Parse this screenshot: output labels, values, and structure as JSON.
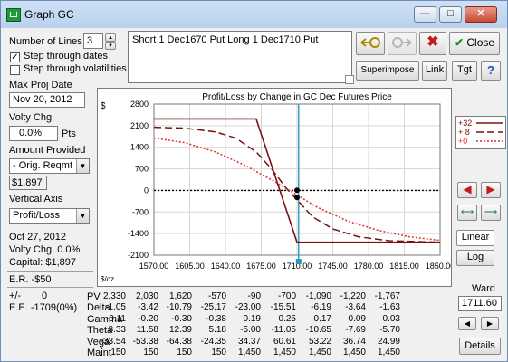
{
  "window": {
    "title": "Graph GC"
  },
  "left_panel": {
    "num_lines_label": "Number of Lines",
    "num_lines_value": "3",
    "step_dates_label": "Step through dates",
    "step_vol_label": "Step through volatilities",
    "max_proj_date_label": "Max Proj Date",
    "max_proj_date_value": "Nov 20, 2012",
    "volty_chg_label": "Volty Chg",
    "volty_chg_value": "0.0%",
    "volty_chg_unit": "Pts",
    "amount_provided_label": "Amount Provided",
    "amount_provided_value": "- Orig. Reqmt",
    "amount_value": "$1,897",
    "vertical_axis_label": "Vertical Axis",
    "vertical_axis_value": "Profit/Loss",
    "info_date": "Oct 27, 2012",
    "info_volty": "Volty Chg. 0.0%",
    "info_capital": "Capital: $1,897",
    "er_label": "E.R. -$50",
    "pm_label": "+/-",
    "pm_value": "0",
    "ee_label": "E.E. -1709(0%)"
  },
  "position_text": "Short 1 Dec1670 Put  Long 1 Dec1710 Put",
  "toolbar": {
    "close_label": "Close",
    "superimpose_label": "Superimpose",
    "link_label": "Link",
    "tgt_label": "Tgt",
    "help_label": "?"
  },
  "right_panel": {
    "linear_label": "Linear",
    "log_label": "Log",
    "ward_label": "Ward",
    "ward_value": "1711.60",
    "details_label": "Details"
  },
  "legend": [
    {
      "label": "+32",
      "color": "#7a1010",
      "style": "solid"
    },
    {
      "label": "+ 8",
      "color": "#7a1010",
      "style": "dash"
    },
    {
      "label": "+0",
      "color": "#e03030",
      "style": "dot"
    }
  ],
  "chart_data": {
    "type": "line",
    "title": "Profit/Loss by Change in GC Dec Futures Price",
    "ylabel_unit": "$",
    "xlabel_unit": "$/oz",
    "x_ticks": [
      "1570.00",
      "1605.00",
      "1640.00",
      "1675.00",
      "1710.00",
      "1745.00",
      "1780.00",
      "1815.00",
      "1850.00"
    ],
    "y_ticks": [
      "2800",
      "2100",
      "1400",
      "700",
      "0",
      "-700",
      "-1400",
      "-2100"
    ],
    "xlim": [
      1570,
      1850
    ],
    "ylim": [
      -2100,
      2800
    ],
    "current_price": 1711.6,
    "zero_line_style": "dotted",
    "series": [
      {
        "name": "+32",
        "color": "#7a1010",
        "style": "solid",
        "x": [
          1570,
          1670,
          1710,
          1850
        ],
        "y": [
          2320,
          2320,
          -1680,
          -1680
        ]
      },
      {
        "name": "+ 8",
        "color": "#7a1010",
        "style": "dash",
        "x": [
          1570,
          1600,
          1630,
          1650,
          1670,
          1685,
          1700,
          1710,
          1725,
          1745,
          1770,
          1800,
          1850
        ],
        "y": [
          2050,
          2020,
          1900,
          1700,
          1250,
          700,
          50,
          -300,
          -850,
          -1250,
          -1500,
          -1630,
          -1680
        ]
      },
      {
        "name": "+0",
        "color": "#e03030",
        "style": "dot",
        "x": [
          1570,
          1600,
          1630,
          1660,
          1690,
          1710,
          1730,
          1760,
          1790,
          1820,
          1850
        ],
        "y": [
          1700,
          1550,
          1250,
          800,
          250,
          -150,
          -550,
          -1000,
          -1300,
          -1500,
          -1620
        ]
      }
    ]
  },
  "greeks": {
    "rows": [
      {
        "label": "PV",
        "values": [
          "2,330",
          "2,030",
          "1,620",
          "-570",
          "-90",
          "-700",
          "-1,090",
          "-1,220",
          "-1,767"
        ]
      },
      {
        "label": "Delta",
        "values": [
          "-1.05",
          "-3.42",
          "-10.79",
          "-25.17",
          "-23.00",
          "-15.51",
          "-6.19",
          "-3.64",
          "-1.63"
        ]
      },
      {
        "label": "Gamma",
        "values": [
          "-0.11",
          "-0.20",
          "-0.30",
          "-0.38",
          "0.19",
          "0.25",
          "0.17",
          "0.09",
          "0.03"
        ]
      },
      {
        "label": "Theta",
        "values": [
          "3.33",
          "11.58",
          "12.39",
          "5.18",
          "-5.00",
          "-11.05",
          "-10.65",
          "-7.69",
          "-5.70"
        ]
      },
      {
        "label": "Vega",
        "values": [
          "-33.54",
          "-53.38",
          "-64.38",
          "-24.35",
          "34.37",
          "60.61",
          "53.22",
          "36.74",
          "24.99"
        ]
      },
      {
        "label": "Maint",
        "values": [
          "150",
          "150",
          "150",
          "150",
          "1,450",
          "1,450",
          "1,450",
          "1,450",
          "1,450"
        ]
      }
    ]
  }
}
